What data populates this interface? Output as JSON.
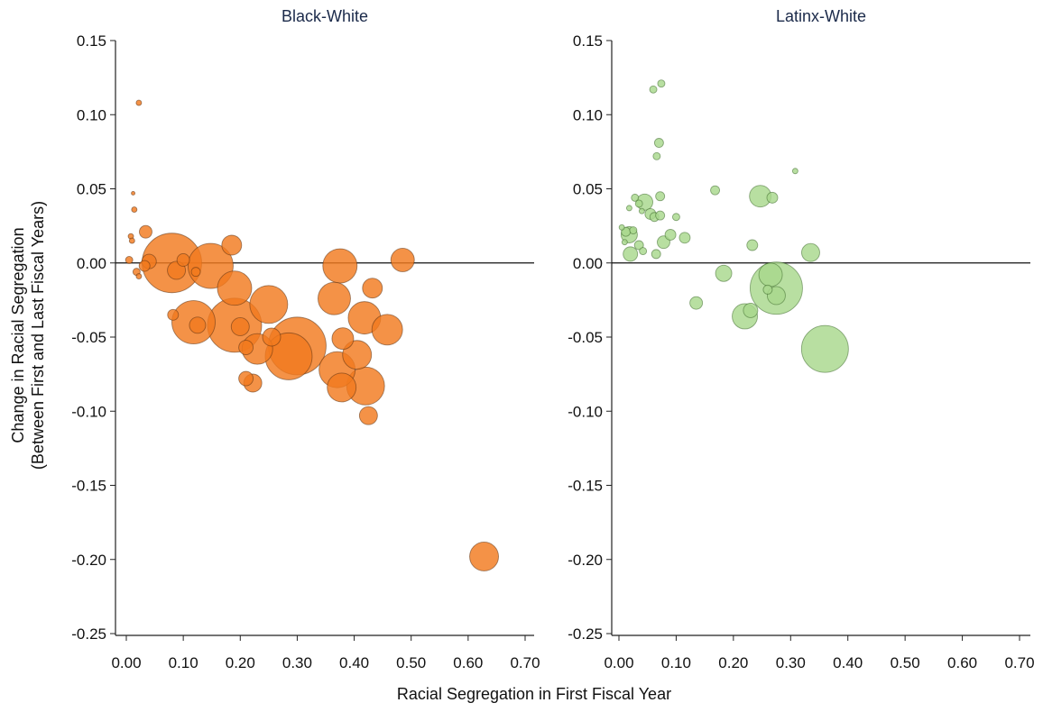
{
  "chart_data": {
    "type": "scatter",
    "xlabel": "Racial Segregation in First Fiscal Year",
    "ylabel_line1": "Change in Racial Segregation",
    "ylabel_line2": "(Between First and Last Fiscal Years)",
    "xlim": [
      0.0,
      0.7
    ],
    "ylim": [
      -0.25,
      0.15
    ],
    "x_ticks": [
      "0.00",
      "0.10",
      "0.20",
      "0.30",
      "0.40",
      "0.50",
      "0.60",
      "0.70"
    ],
    "y_ticks": [
      "0.15",
      "0.10",
      "0.05",
      "0.00",
      "-0.05",
      "-0.10",
      "-0.15",
      "-0.20",
      "-0.25"
    ],
    "reference_line_y": 0.0,
    "grid": false,
    "panels": [
      {
        "title": "Black-White",
        "color": "#f27a1e",
        "edge_color": "#5a3010",
        "points": [
          {
            "x": 0.022,
            "y": 0.108,
            "s": 3
          },
          {
            "x": 0.012,
            "y": 0.047,
            "s": 2
          },
          {
            "x": 0.014,
            "y": 0.036,
            "s": 3
          },
          {
            "x": 0.008,
            "y": 0.018,
            "s": 3
          },
          {
            "x": 0.01,
            "y": 0.015,
            "s": 3
          },
          {
            "x": 0.034,
            "y": 0.021,
            "s": 7
          },
          {
            "x": 0.005,
            "y": 0.002,
            "s": 4
          },
          {
            "x": 0.018,
            "y": -0.006,
            "s": 4
          },
          {
            "x": 0.022,
            "y": -0.009,
            "s": 3
          },
          {
            "x": 0.032,
            "y": -0.002,
            "s": 6
          },
          {
            "x": 0.04,
            "y": 0.001,
            "s": 8
          },
          {
            "x": 0.08,
            "y": 0.0,
            "s": 33
          },
          {
            "x": 0.088,
            "y": -0.005,
            "s": 10
          },
          {
            "x": 0.1,
            "y": 0.002,
            "s": 7
          },
          {
            "x": 0.122,
            "y": -0.006,
            "s": 5
          },
          {
            "x": 0.082,
            "y": -0.035,
            "s": 6
          },
          {
            "x": 0.118,
            "y": -0.04,
            "s": 24
          },
          {
            "x": 0.125,
            "y": -0.042,
            "s": 9
          },
          {
            "x": 0.148,
            "y": -0.002,
            "s": 25
          },
          {
            "x": 0.185,
            "y": 0.012,
            "s": 11
          },
          {
            "x": 0.19,
            "y": -0.017,
            "s": 19
          },
          {
            "x": 0.19,
            "y": -0.042,
            "s": 30
          },
          {
            "x": 0.2,
            "y": -0.043,
            "s": 10
          },
          {
            "x": 0.21,
            "y": -0.057,
            "s": 8
          },
          {
            "x": 0.21,
            "y": -0.078,
            "s": 8
          },
          {
            "x": 0.222,
            "y": -0.081,
            "s": 10
          },
          {
            "x": 0.23,
            "y": -0.058,
            "s": 17
          },
          {
            "x": 0.25,
            "y": -0.028,
            "s": 21
          },
          {
            "x": 0.255,
            "y": -0.05,
            "s": 10
          },
          {
            "x": 0.285,
            "y": -0.063,
            "s": 26
          },
          {
            "x": 0.3,
            "y": -0.056,
            "s": 32
          },
          {
            "x": 0.375,
            "y": -0.002,
            "s": 19
          },
          {
            "x": 0.365,
            "y": -0.024,
            "s": 18
          },
          {
            "x": 0.37,
            "y": -0.072,
            "s": 20
          },
          {
            "x": 0.38,
            "y": -0.051,
            "s": 12
          },
          {
            "x": 0.378,
            "y": -0.084,
            "s": 16
          },
          {
            "x": 0.405,
            "y": -0.062,
            "s": 16
          },
          {
            "x": 0.42,
            "y": -0.083,
            "s": 21
          },
          {
            "x": 0.425,
            "y": -0.103,
            "s": 10
          },
          {
            "x": 0.418,
            "y": -0.037,
            "s": 18
          },
          {
            "x": 0.432,
            "y": -0.017,
            "s": 11
          },
          {
            "x": 0.458,
            "y": -0.045,
            "s": 17
          },
          {
            "x": 0.485,
            "y": 0.002,
            "s": 13
          },
          {
            "x": 0.628,
            "y": -0.198,
            "s": 16
          }
        ]
      },
      {
        "title": "Latinx-White",
        "color": "#a8d88c",
        "edge_color": "#3c6a2a",
        "points": [
          {
            "x": 0.06,
            "y": 0.117,
            "s": 4
          },
          {
            "x": 0.074,
            "y": 0.121,
            "s": 4
          },
          {
            "x": 0.07,
            "y": 0.081,
            "s": 5
          },
          {
            "x": 0.066,
            "y": 0.072,
            "s": 4
          },
          {
            "x": 0.308,
            "y": 0.062,
            "s": 3
          },
          {
            "x": 0.168,
            "y": 0.049,
            "s": 5
          },
          {
            "x": 0.247,
            "y": 0.045,
            "s": 12
          },
          {
            "x": 0.268,
            "y": 0.044,
            "s": 6
          },
          {
            "x": 0.072,
            "y": 0.045,
            "s": 5
          },
          {
            "x": 0.028,
            "y": 0.044,
            "s": 4
          },
          {
            "x": 0.035,
            "y": 0.04,
            "s": 4
          },
          {
            "x": 0.045,
            "y": 0.041,
            "s": 9
          },
          {
            "x": 0.018,
            "y": 0.037,
            "s": 3
          },
          {
            "x": 0.04,
            "y": 0.035,
            "s": 3
          },
          {
            "x": 0.055,
            "y": 0.033,
            "s": 6
          },
          {
            "x": 0.062,
            "y": 0.031,
            "s": 5
          },
          {
            "x": 0.072,
            "y": 0.032,
            "s": 5
          },
          {
            "x": 0.1,
            "y": 0.031,
            "s": 4
          },
          {
            "x": 0.005,
            "y": 0.024,
            "s": 3
          },
          {
            "x": 0.012,
            "y": 0.021,
            "s": 5
          },
          {
            "x": 0.018,
            "y": 0.019,
            "s": 9
          },
          {
            "x": 0.025,
            "y": 0.022,
            "s": 4
          },
          {
            "x": 0.01,
            "y": 0.014,
            "s": 3
          },
          {
            "x": 0.09,
            "y": 0.019,
            "s": 6
          },
          {
            "x": 0.115,
            "y": 0.017,
            "s": 6
          },
          {
            "x": 0.078,
            "y": 0.014,
            "s": 7
          },
          {
            "x": 0.035,
            "y": 0.012,
            "s": 5
          },
          {
            "x": 0.042,
            "y": 0.008,
            "s": 4
          },
          {
            "x": 0.02,
            "y": 0.006,
            "s": 8
          },
          {
            "x": 0.065,
            "y": 0.006,
            "s": 5
          },
          {
            "x": 0.233,
            "y": 0.012,
            "s": 6
          },
          {
            "x": 0.335,
            "y": 0.007,
            "s": 10
          },
          {
            "x": 0.183,
            "y": -0.007,
            "s": 9
          },
          {
            "x": 0.265,
            "y": -0.008,
            "s": 13
          },
          {
            "x": 0.26,
            "y": -0.018,
            "s": 5
          },
          {
            "x": 0.275,
            "y": -0.017,
            "s": 29
          },
          {
            "x": 0.275,
            "y": -0.022,
            "s": 10
          },
          {
            "x": 0.135,
            "y": -0.027,
            "s": 7
          },
          {
            "x": 0.23,
            "y": -0.032,
            "s": 8
          },
          {
            "x": 0.22,
            "y": -0.036,
            "s": 14
          },
          {
            "x": 0.36,
            "y": -0.058,
            "s": 26
          }
        ]
      }
    ]
  }
}
